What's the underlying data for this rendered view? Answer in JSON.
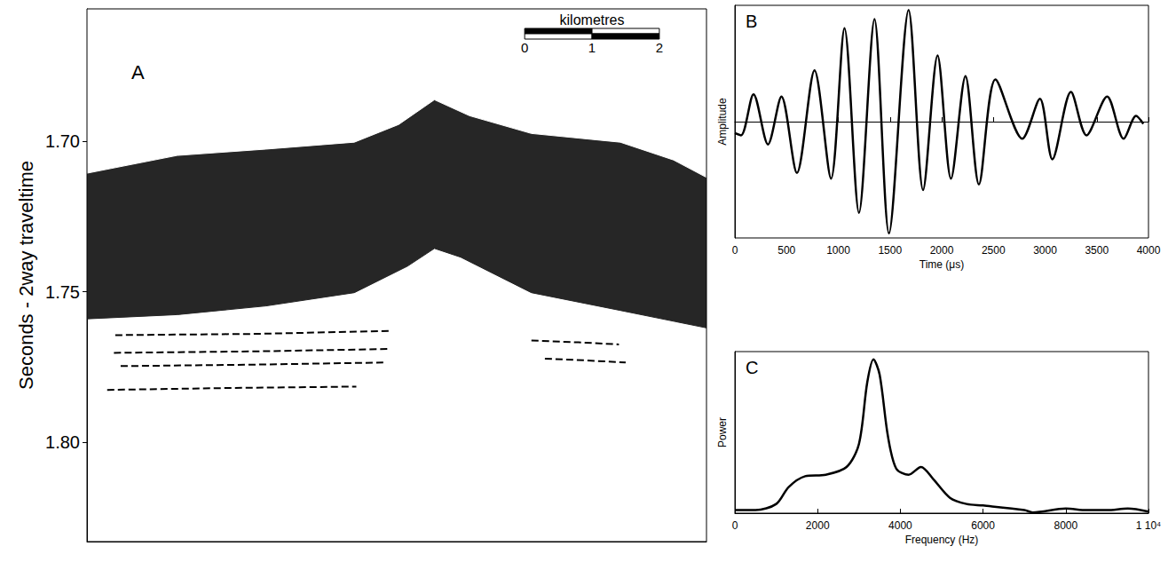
{
  "chart_data": [
    {
      "panel_label": "A",
      "type": "area",
      "y_label": "Seconds - 2way traveltime",
      "xlim": [
        0,
        9.2
      ],
      "ylim": [
        1.656,
        1.833
      ],
      "yticks": [
        {
          "value": 1.7,
          "label": "1.70"
        },
        {
          "value": 1.75,
          "label": "1.75"
        },
        {
          "value": 1.8,
          "label": "1.80"
        }
      ],
      "tick_labels": "y",
      "grid": false,
      "scale_bar": {
        "title": "kilometres",
        "ticks": [
          0,
          1,
          2
        ]
      },
      "series": [
        {
          "type": "area",
          "color": "#262626",
          "x": [
            0,
            1.34,
            2.66,
            3.97,
            4.76,
            5.16,
            5.55,
            6.6,
            7.92,
            9.2
          ],
          "values": [
            1.759,
            1.7576,
            1.7547,
            1.7503,
            1.7415,
            1.7356,
            1.7385,
            1.7503,
            1.7562,
            1.762
          ]
        },
        {
          "type": "area",
          "color": "#ffffff",
          "x": [
            0,
            1.34,
            2.66,
            3.97,
            4.63,
            5.16,
            5.68,
            6.6,
            7.92,
            8.71,
            9.2
          ],
          "values": [
            1.7106,
            1.7047,
            1.7026,
            1.7003,
            1.6944,
            1.6862,
            1.6915,
            1.6974,
            1.7003,
            1.7062,
            1.712
          ]
        },
        {
          "type": "line",
          "color": "#000000",
          "line_style": "dashed",
          "x": [
            0.42,
            2.5,
            4.5
          ],
          "values": [
            1.7644,
            1.764,
            1.763
          ]
        },
        {
          "type": "line",
          "color": "#000000",
          "line_style": "dashed",
          "x": [
            0.4,
            2.5,
            4.5
          ],
          "values": [
            1.7703,
            1.7698,
            1.769
          ]
        },
        {
          "type": "line",
          "color": "#000000",
          "line_style": "dashed",
          "x": [
            0.5,
            2.5,
            4.4
          ],
          "values": [
            1.7747,
            1.7742,
            1.7735
          ]
        },
        {
          "type": "line",
          "color": "#000000",
          "line_style": "dashed",
          "x": [
            0.3,
            2.0,
            4.0
          ],
          "values": [
            1.7826,
            1.782,
            1.7815
          ]
        },
        {
          "type": "line",
          "color": "#000000",
          "line_style": "dashed",
          "x": [
            6.6,
            7.3,
            7.9
          ],
          "values": [
            1.7662,
            1.7668,
            1.7675
          ]
        },
        {
          "type": "line",
          "color": "#000000",
          "line_style": "dashed",
          "x": [
            6.8,
            7.4,
            8.0
          ],
          "values": [
            1.7722,
            1.7728,
            1.7735
          ]
        }
      ]
    },
    {
      "panel_label": "B",
      "type": "line",
      "x_label": "Time (μs)",
      "y_label": "Amplitude",
      "xlim": [
        0,
        4000
      ],
      "ylim": [
        -1.02,
        1.02
      ],
      "xticks": [
        0,
        500,
        1000,
        1500,
        2000,
        2500,
        3000,
        3500,
        4000
      ],
      "tick_labels": "x",
      "grid": false,
      "color": "#000000",
      "x": [
        0,
        60,
        180,
        320,
        450,
        600,
        770,
        930,
        1060,
        1200,
        1350,
        1490,
        1680,
        1820,
        1960,
        2090,
        2230,
        2360,
        2520,
        2780,
        2950,
        3070,
        3250,
        3400,
        3600,
        3760,
        3880,
        3950
      ],
      "values": [
        -0.1,
        -0.12,
        0.24,
        -0.2,
        0.22,
        -0.45,
        0.45,
        -0.5,
        0.82,
        -0.8,
        0.9,
        -0.98,
        0.98,
        -0.6,
        0.58,
        -0.5,
        0.4,
        -0.55,
        0.37,
        -0.15,
        0.2,
        -0.33,
        0.26,
        -0.12,
        0.22,
        -0.15,
        0.05,
        -0.02
      ]
    },
    {
      "panel_label": "C",
      "type": "line",
      "x_label": "Frequency (Hz)",
      "y_label": "Power",
      "xlim": [
        0,
        10000
      ],
      "ylim": [
        0,
        1.05
      ],
      "xticks": [
        0,
        2000,
        4000,
        6000,
        8000,
        {
          "value": 10000,
          "label": "1 10⁴"
        }
      ],
      "tick_labels": "x",
      "grid": false,
      "color": "#000000",
      "x": [
        0,
        500,
        1000,
        1300,
        1700,
        2200,
        2700,
        3000,
        3200,
        3350,
        3500,
        3700,
        3900,
        4200,
        4500,
        4800,
        5200,
        5600,
        6000,
        7000,
        7200,
        8000,
        8500,
        9000,
        9500,
        10000
      ],
      "values": [
        0.02,
        0.02,
        0.06,
        0.17,
        0.24,
        0.25,
        0.3,
        0.45,
        0.85,
        1.0,
        0.9,
        0.5,
        0.29,
        0.25,
        0.3,
        0.22,
        0.1,
        0.06,
        0.05,
        0.02,
        0.005,
        0.03,
        0.02,
        0.02,
        0.03,
        0.01
      ]
    }
  ]
}
